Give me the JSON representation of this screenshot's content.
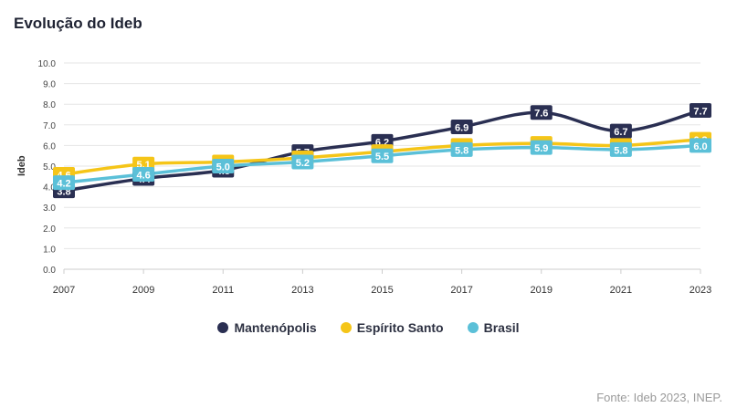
{
  "page": {
    "title": "Evolução do Ideb",
    "source": "Fonte: Ideb 2023, INEP."
  },
  "colors": {
    "Mantenópolis": "#2a2f52",
    "Espírito Santo": "#f5c518",
    "Brasil": "#5bc0d8"
  },
  "chart_data": {
    "type": "line",
    "title": "Evolução do Ideb",
    "xlabel": "",
    "ylabel": "Ideb",
    "ylim": [
      0,
      10
    ],
    "yticks": [
      "0.0",
      "1.0",
      "2.0",
      "3.0",
      "4.0",
      "5.0",
      "6.0",
      "7.0",
      "8.0",
      "9.0",
      "10.0"
    ],
    "categories": [
      "2007",
      "2009",
      "2011",
      "2013",
      "2015",
      "2017",
      "2019",
      "2021",
      "2023"
    ],
    "grid": true,
    "legend_position": "bottom",
    "series": [
      {
        "name": "Mantenópolis",
        "values": [
          3.8,
          4.4,
          4.8,
          5.7,
          6.2,
          6.9,
          7.6,
          6.7,
          7.7
        ]
      },
      {
        "name": "Espírito Santo",
        "values": [
          4.6,
          5.1,
          5.2,
          5.4,
          5.7,
          6.0,
          6.1,
          6.0,
          6.3
        ]
      },
      {
        "name": "Brasil",
        "values": [
          4.2,
          4.6,
          5.0,
          5.2,
          5.5,
          5.8,
          5.9,
          5.8,
          6.0
        ]
      }
    ]
  }
}
